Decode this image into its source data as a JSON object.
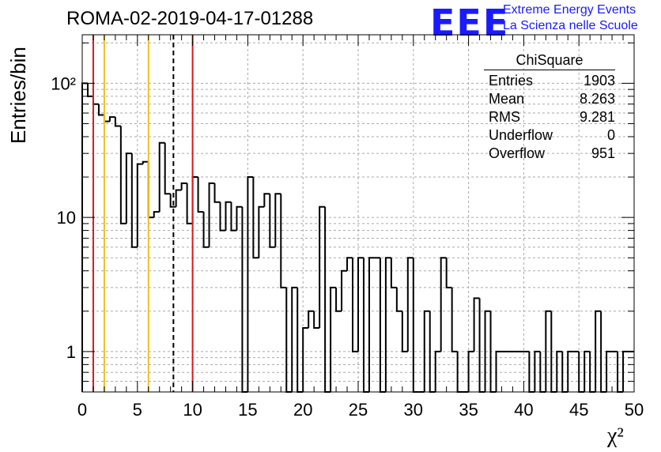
{
  "header": {
    "title": "ROMA-02-2019-04-17-01288",
    "logo_text": "EEE",
    "logo_line1": "Extreme Energy Events",
    "logo_line2": "La Scienza nelle Scuole"
  },
  "stats": {
    "name": "ChiSquare",
    "rows": [
      {
        "label": "Entries",
        "value": "1903"
      },
      {
        "label": "Mean",
        "value": "8.263"
      },
      {
        "label": "RMS",
        "value": "9.281"
      },
      {
        "label": "Underflow",
        "value": "0"
      },
      {
        "label": "Overflow",
        "value": "951"
      }
    ]
  },
  "chart_data": {
    "type": "histogram",
    "ylabel": "Entries/bin",
    "xlabel": "χ²",
    "xlim": [
      0,
      50
    ],
    "ylim": [
      0.5,
      230
    ],
    "yscale": "log",
    "bin_width": 0.5,
    "grid": true,
    "xticks": [
      "0",
      "5",
      "10",
      "15",
      "20",
      "25",
      "30",
      "35",
      "40",
      "45",
      "50"
    ],
    "yticks": [
      {
        "value": 1,
        "label": "1"
      },
      {
        "value": 10,
        "label": "10"
      },
      {
        "value": 100,
        "label": "10²"
      }
    ],
    "values": [
      100,
      80,
      70,
      58,
      52,
      56,
      48,
      9,
      30,
      6,
      25,
      26,
      10,
      11,
      36,
      15,
      12,
      16,
      18,
      9,
      20,
      11,
      6,
      18,
      13,
      8,
      13,
      8,
      12,
      0,
      20,
      5,
      12,
      15,
      6,
      15,
      3,
      0.5,
      3,
      0.5,
      1.5,
      2,
      1.5,
      12,
      0,
      3,
      2,
      4,
      5,
      1,
      5,
      0,
      5,
      5,
      0.5,
      5,
      3,
      2,
      1,
      5,
      0.5,
      0.5,
      2,
      0.5,
      1,
      5,
      3,
      1,
      0.5,
      0.5,
      1,
      2.5,
      0.5,
      2,
      0.5,
      1,
      1,
      1,
      1,
      1,
      1,
      0,
      1,
      0.5,
      2,
      0.5,
      1,
      0.5,
      1,
      1,
      0,
      1,
      0.5,
      2,
      0.5,
      1,
      1,
      0,
      1,
      1
    ],
    "vertical_lines": [
      {
        "x": 1,
        "color": "#d9191c",
        "style": "solid"
      },
      {
        "x": 2,
        "color": "#f0c020",
        "style": "solid"
      },
      {
        "x": 6,
        "color": "#f0c020",
        "style": "solid"
      },
      {
        "x": 8.263,
        "color": "#000000",
        "style": "dashed"
      },
      {
        "x": 10,
        "color": "#d9191c",
        "style": "solid"
      }
    ]
  }
}
